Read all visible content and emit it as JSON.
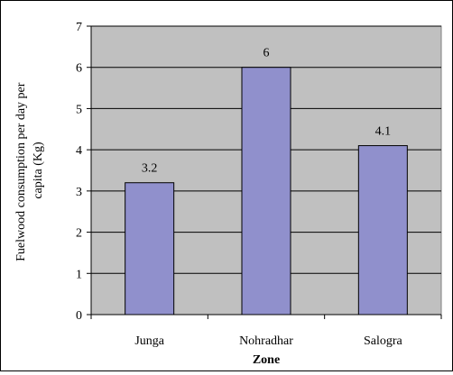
{
  "chart_data": {
    "type": "bar",
    "categories": [
      "Junga",
      "Nohradhar",
      "Salogra"
    ],
    "values": [
      3.2,
      6,
      4.1
    ],
    "data_labels": [
      "3.2",
      "6",
      "4.1"
    ],
    "title": "",
    "xlabel": "Zone",
    "ylabel": "Fuelwood consumption per day per capita (Kg)",
    "ylabel_lines": [
      "Fuelwood consumption per day per",
      "capita (Kg)"
    ],
    "ylim": [
      0,
      7
    ],
    "yticks": [
      "0",
      "1",
      "2",
      "3",
      "4",
      "5",
      "6",
      "7"
    ],
    "grid": true,
    "legend": "none",
    "colors": {
      "bar_fill": "#9090cc",
      "bar_stroke": "#000000",
      "plot_background": "#c0c0c0",
      "gridline": "#000000"
    }
  }
}
